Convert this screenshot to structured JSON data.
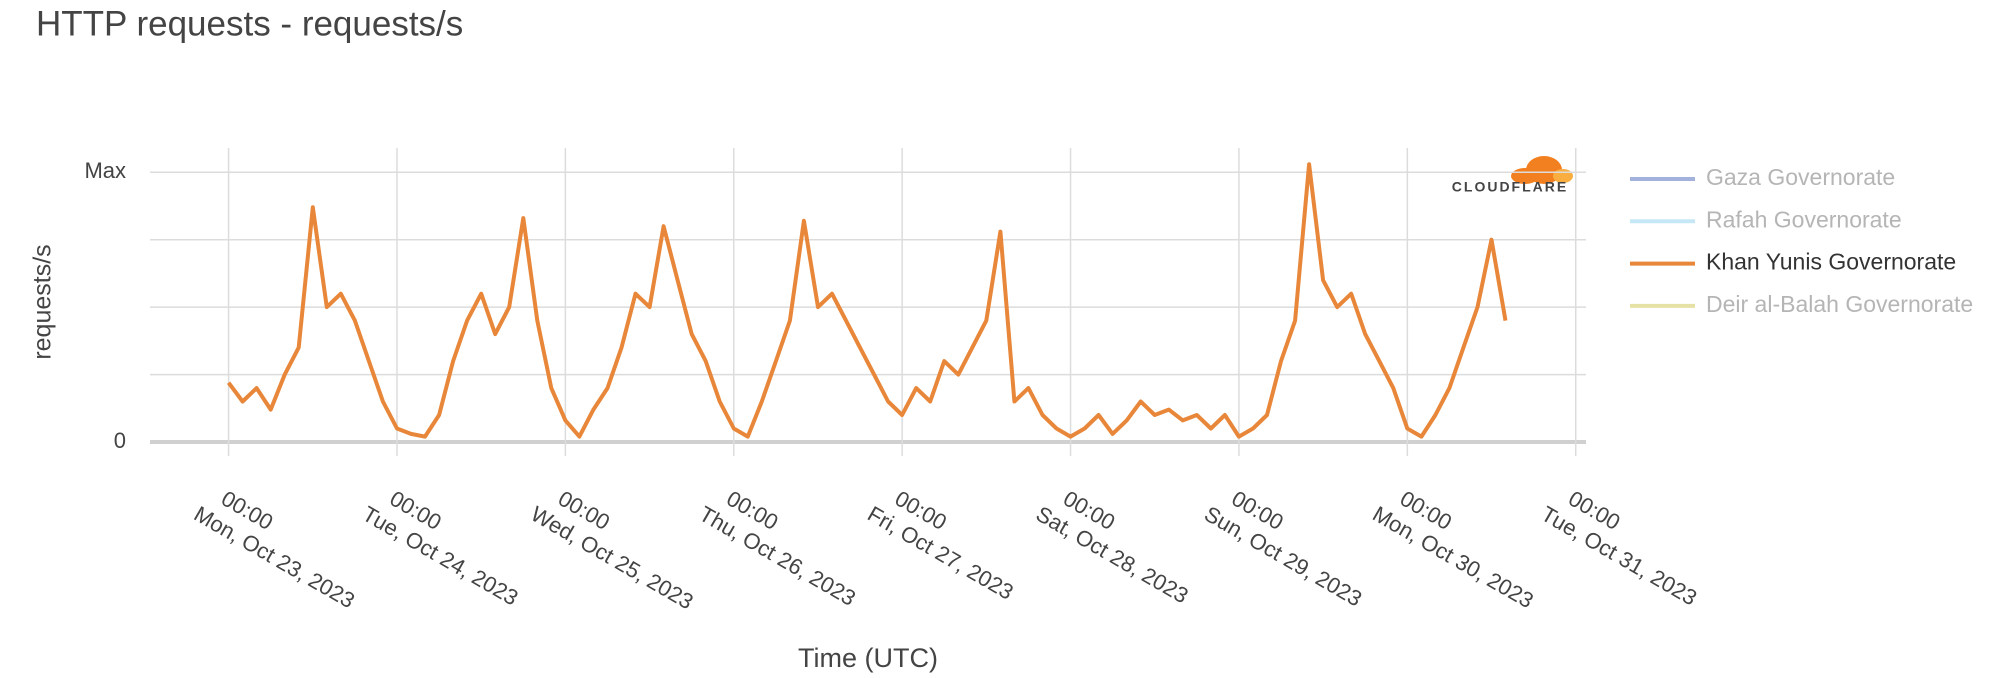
{
  "chart_data": {
    "type": "line",
    "title": "HTTP requests - requests/s",
    "y_label": "requests/s",
    "x_label": "Time (UTC)",
    "watermark": "CLOUDFLARE",
    "grid": true,
    "legend": "right",
    "xlim": [
      "2023-10-22T12:48",
      "2023-10-31T01:28"
    ],
    "xticks": [
      {
        "value": "2023-10-23T00:00",
        "label": [
          "00:00",
          "Mon, Oct 23, 2023"
        ]
      },
      {
        "value": "2023-10-24T00:00",
        "label": [
          "00:00",
          "Tue, Oct 24, 2023"
        ]
      },
      {
        "value": "2023-10-25T00:00",
        "label": [
          "00:00",
          "Wed, Oct 25, 2023"
        ]
      },
      {
        "value": "2023-10-26T00:00",
        "label": [
          "00:00",
          "Thu, Oct 26, 2023"
        ]
      },
      {
        "value": "2023-10-27T00:00",
        "label": [
          "00:00",
          "Fri, Oct 27, 2023"
        ]
      },
      {
        "value": "2023-10-28T00:00",
        "label": [
          "00:00",
          "Sat, Oct 28, 2023"
        ]
      },
      {
        "value": "2023-10-29T00:00",
        "label": [
          "00:00",
          "Sun, Oct 29, 2023"
        ]
      },
      {
        "value": "2023-10-30T00:00",
        "label": [
          "00:00",
          "Mon, Oct 30, 2023"
        ]
      },
      {
        "value": "2023-10-31T00:00",
        "label": [
          "00:00",
          "Tue, Oct 31, 2023"
        ]
      }
    ],
    "ylim": [
      0,
      1.09
    ],
    "yticks": [
      0,
      {
        "value": 0.25,
        "label": null
      },
      {
        "value": 0.5,
        "label": null
      },
      {
        "value": 0.75,
        "label": null
      },
      {
        "value": 1,
        "label": "Max"
      }
    ],
    "x": [
      "2023-10-23T00:00",
      "2023-10-23T02:00",
      "2023-10-23T04:00",
      "2023-10-23T06:00",
      "2023-10-23T08:00",
      "2023-10-23T10:00",
      "2023-10-23T12:00",
      "2023-10-23T14:00",
      "2023-10-23T16:00",
      "2023-10-23T18:00",
      "2023-10-23T20:00",
      "2023-10-23T22:00",
      "2023-10-24T00:00",
      "2023-10-24T02:00",
      "2023-10-24T04:00",
      "2023-10-24T06:00",
      "2023-10-24T08:00",
      "2023-10-24T10:00",
      "2023-10-24T12:00",
      "2023-10-24T14:00",
      "2023-10-24T16:00",
      "2023-10-24T18:00",
      "2023-10-24T20:00",
      "2023-10-24T22:00",
      "2023-10-25T00:00",
      "2023-10-25T02:00",
      "2023-10-25T04:00",
      "2023-10-25T06:00",
      "2023-10-25T08:00",
      "2023-10-25T10:00",
      "2023-10-25T12:00",
      "2023-10-25T14:00",
      "2023-10-25T16:00",
      "2023-10-25T18:00",
      "2023-10-25T20:00",
      "2023-10-25T22:00",
      "2023-10-26T00:00",
      "2023-10-26T02:00",
      "2023-10-26T04:00",
      "2023-10-26T06:00",
      "2023-10-26T08:00",
      "2023-10-26T10:00",
      "2023-10-26T12:00",
      "2023-10-26T14:00",
      "2023-10-26T16:00",
      "2023-10-26T18:00",
      "2023-10-26T20:00",
      "2023-10-26T22:00",
      "2023-10-27T00:00",
      "2023-10-27T02:00",
      "2023-10-27T04:00",
      "2023-10-27T06:00",
      "2023-10-27T08:00",
      "2023-10-27T10:00",
      "2023-10-27T12:00",
      "2023-10-27T14:00",
      "2023-10-27T16:00",
      "2023-10-27T18:00",
      "2023-10-27T20:00",
      "2023-10-27T22:00",
      "2023-10-28T00:00",
      "2023-10-28T02:00",
      "2023-10-28T04:00",
      "2023-10-28T06:00",
      "2023-10-28T08:00",
      "2023-10-28T10:00",
      "2023-10-28T12:00",
      "2023-10-28T14:00",
      "2023-10-28T16:00",
      "2023-10-28T18:00",
      "2023-10-28T20:00",
      "2023-10-28T22:00",
      "2023-10-29T00:00",
      "2023-10-29T02:00",
      "2023-10-29T04:00",
      "2023-10-29T06:00",
      "2023-10-29T08:00",
      "2023-10-29T10:00",
      "2023-10-29T12:00",
      "2023-10-29T14:00",
      "2023-10-29T16:00",
      "2023-10-29T18:00",
      "2023-10-29T20:00",
      "2023-10-29T22:00",
      "2023-10-30T00:00",
      "2023-10-30T02:00",
      "2023-10-30T04:00",
      "2023-10-30T06:00",
      "2023-10-30T08:00",
      "2023-10-30T10:00",
      "2023-10-30T12:00",
      "2023-10-30T14:00"
    ],
    "series": [
      {
        "name": "Gaza Governorate",
        "color": "#8c9fd4",
        "hidden": true
      },
      {
        "name": "Rafah Governorate",
        "color": "#b9e3f5",
        "hidden": true
      },
      {
        "name": "Khan Yunis Governorate",
        "color": "#e8873a",
        "hidden": false,
        "values": [
          0.22,
          0.15,
          0.2,
          0.12,
          0.25,
          0.35,
          0.87,
          0.5,
          0.55,
          0.45,
          0.3,
          0.15,
          0.05,
          0.03,
          0.02,
          0.1,
          0.3,
          0.45,
          0.55,
          0.4,
          0.5,
          0.83,
          0.45,
          0.2,
          0.08,
          0.02,
          0.12,
          0.2,
          0.35,
          0.55,
          0.5,
          0.8,
          0.6,
          0.4,
          0.3,
          0.15,
          0.05,
          0.02,
          0.15,
          0.3,
          0.45,
          0.82,
          0.5,
          0.55,
          0.45,
          0.35,
          0.25,
          0.15,
          0.1,
          0.2,
          0.15,
          0.3,
          0.25,
          0.35,
          0.45,
          0.78,
          0.15,
          0.2,
          0.1,
          0.05,
          0.02,
          0.05,
          0.1,
          0.03,
          0.08,
          0.15,
          0.1,
          0.12,
          0.08,
          0.1,
          0.05,
          0.1,
          0.02,
          0.05,
          0.1,
          0.3,
          0.45,
          1.03,
          0.6,
          0.5,
          0.55,
          0.4,
          0.3,
          0.2,
          0.05,
          0.02,
          0.1,
          0.2,
          0.35,
          0.5,
          0.75,
          0.45
        ]
      },
      {
        "name": "Deir al-Balah Governorate",
        "color": "#e0dc8f",
        "hidden": true
      }
    ]
  }
}
